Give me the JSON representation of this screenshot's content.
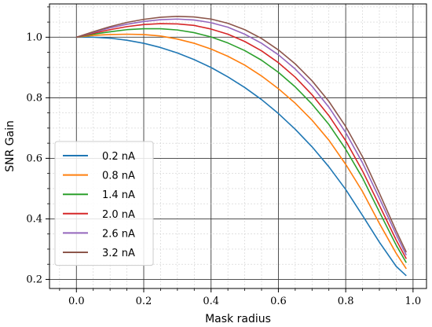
{
  "chart_data": {
    "type": "line",
    "xlabel": "Mask radius",
    "ylabel": "SNR Gain",
    "xlim": [
      -0.08,
      1.04
    ],
    "ylim": [
      0.17,
      1.11
    ],
    "xticks": [
      0.0,
      0.2,
      0.4,
      0.6,
      0.8,
      1.0
    ],
    "yticks": [
      0.2,
      0.4,
      0.6,
      0.8,
      1.0
    ],
    "xtick_labels": [
      "0.0",
      "0.2",
      "0.4",
      "0.6",
      "0.8",
      "1.0"
    ],
    "ytick_labels": [
      "0.2",
      "0.4",
      "0.6",
      "0.8",
      "1.0"
    ],
    "grid": {
      "major": true,
      "minor": true
    },
    "legend_position": "lower-left",
    "x": [
      0.0,
      0.05,
      0.1,
      0.15,
      0.2,
      0.25,
      0.3,
      0.35,
      0.4,
      0.45,
      0.5,
      0.55,
      0.6,
      0.65,
      0.7,
      0.75,
      0.8,
      0.85,
      0.9,
      0.95,
      0.98
    ],
    "series": [
      {
        "name": "0.2 nA",
        "color": "#1f77b4",
        "values": [
          1.0,
          1.0,
          0.997,
          0.99,
          0.98,
          0.966,
          0.948,
          0.926,
          0.9,
          0.869,
          0.834,
          0.794,
          0.748,
          0.696,
          0.638,
          0.572,
          0.497,
          0.411,
          0.323,
          0.243,
          0.212
        ]
      },
      {
        "name": "0.8 nA",
        "color": "#ff7f0e",
        "values": [
          1.0,
          1.006,
          1.009,
          1.01,
          1.009,
          1.004,
          0.994,
          0.98,
          0.961,
          0.937,
          0.908,
          0.872,
          0.83,
          0.782,
          0.726,
          0.66,
          0.58,
          0.49,
          0.385,
          0.286,
          0.235
        ]
      },
      {
        "name": "1.4 nA",
        "color": "#2ca02c",
        "values": [
          1.0,
          1.01,
          1.018,
          1.025,
          1.028,
          1.028,
          1.024,
          1.015,
          1.001,
          0.981,
          0.956,
          0.924,
          0.884,
          0.836,
          0.779,
          0.712,
          0.63,
          0.535,
          0.423,
          0.313,
          0.255
        ]
      },
      {
        "name": "2.0 nA",
        "color": "#d62728",
        "values": [
          1.0,
          1.013,
          1.025,
          1.035,
          1.042,
          1.045,
          1.044,
          1.039,
          1.027,
          1.01,
          0.986,
          0.955,
          0.916,
          0.868,
          0.81,
          0.741,
          0.658,
          0.558,
          0.445,
          0.33,
          0.268
        ]
      },
      {
        "name": "2.6 nA",
        "color": "#9467bd",
        "values": [
          1.0,
          1.016,
          1.031,
          1.043,
          1.052,
          1.058,
          1.06,
          1.057,
          1.048,
          1.033,
          1.01,
          0.98,
          0.942,
          0.895,
          0.838,
          0.769,
          0.685,
          0.585,
          0.468,
          0.348,
          0.28
        ]
      },
      {
        "name": "3.2 nA",
        "color": "#8c564b",
        "values": [
          1.0,
          1.018,
          1.035,
          1.049,
          1.059,
          1.066,
          1.069,
          1.067,
          1.06,
          1.046,
          1.025,
          0.996,
          0.958,
          0.912,
          0.856,
          0.788,
          0.705,
          0.605,
          0.485,
          0.36,
          0.29
        ]
      }
    ]
  }
}
